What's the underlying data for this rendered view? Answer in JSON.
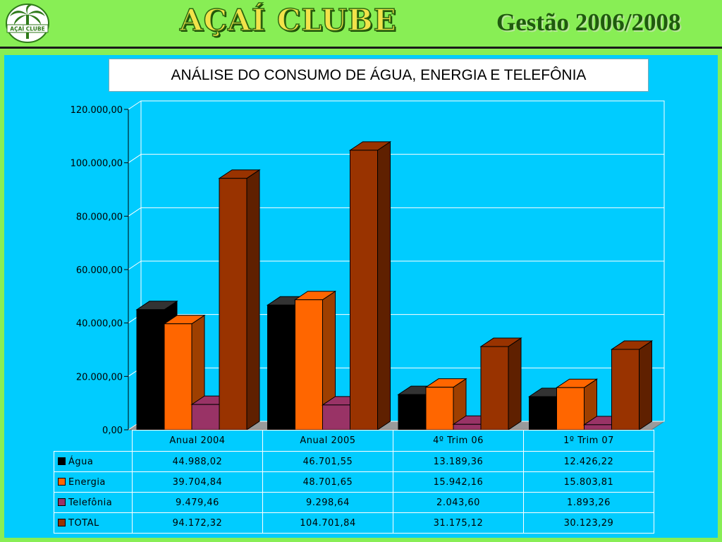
{
  "header": {
    "logo_text": "AÇAÍ CLUBE",
    "brand": "AÇAÍ CLUBE",
    "gestao": "Gestão 2006/2008"
  },
  "colors": {
    "background": "#88ee55",
    "panel": "#00ccff",
    "series": [
      "#000000",
      "#ff6600",
      "#993366",
      "#993300"
    ]
  },
  "chart_data": {
    "type": "bar",
    "title": "ANÁLISE DO CONSUMO DE ÁGUA, ENERGIA E TELEFÔNIA",
    "categories": [
      "Anual 2004",
      "Anual 2005",
      "4º Trim 06",
      "1º Trim 07"
    ],
    "series": [
      {
        "name": "Água",
        "color": "#000000",
        "values": [
          44988.02,
          46701.55,
          13189.36,
          12426.22
        ],
        "labels": [
          "44.988,02",
          "46.701,55",
          "13.189,36",
          "12.426,22"
        ]
      },
      {
        "name": "Energia",
        "color": "#ff6600",
        "values": [
          39704.84,
          48701.65,
          15942.16,
          15803.81
        ],
        "labels": [
          "39.704,84",
          "48.701,65",
          "15.942,16",
          "15.803,81"
        ]
      },
      {
        "name": "Telefônia",
        "color": "#993366",
        "values": [
          9479.46,
          9298.64,
          2043.6,
          1893.26
        ],
        "labels": [
          "9.479,46",
          "9.298,64",
          "2.043,60",
          "1.893,26"
        ]
      },
      {
        "name": "TOTAL",
        "color": "#993300",
        "values": [
          94172.32,
          104701.84,
          31175.12,
          30123.29
        ],
        "labels": [
          "94.172,32",
          "104.701,84",
          "31.175,12",
          "30.123,29"
        ]
      }
    ],
    "ylim": [
      0,
      120000
    ],
    "yticks": [
      0,
      20000,
      40000,
      60000,
      80000,
      100000,
      120000
    ],
    "ytick_labels": [
      "0,00",
      "20.000,00",
      "40.000,00",
      "60.000,00",
      "80.000,00",
      "100.000,00",
      "120.000,00"
    ],
    "grid": true,
    "legend": "data-table-below",
    "style": "3d-column"
  }
}
